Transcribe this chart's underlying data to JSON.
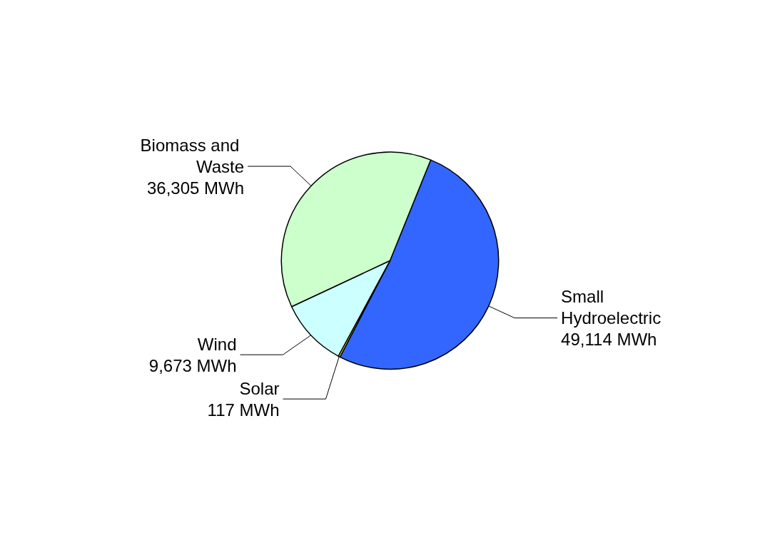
{
  "chart_data": {
    "type": "pie",
    "categories": [
      "Small Hydroelectric",
      "Solar",
      "Wind",
      "Biomass and Waste"
    ],
    "values": [
      49114,
      117,
      9673,
      36305
    ],
    "colors": [
      "#3366ff",
      "#ffff00",
      "#ccffff",
      "#ccffcc"
    ],
    "value_labels": [
      "49,114 MWh",
      "117 MWh",
      "9,673 MWh",
      "36,305 MWh"
    ]
  }
}
